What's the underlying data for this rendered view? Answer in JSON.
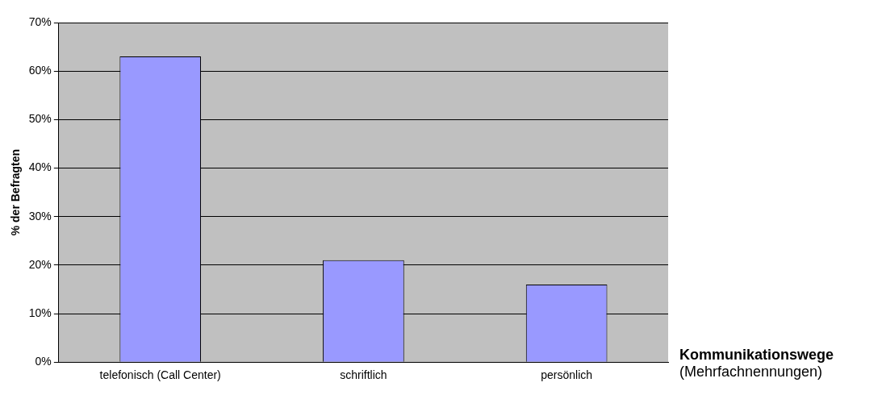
{
  "chart_data": {
    "type": "bar",
    "ylabel": "% der Befragten",
    "xlabel": "Kommunikationswege",
    "annotations": [
      "(Mehrfachnennungen)"
    ],
    "categories": [
      "telefonisch (Call Center)",
      "schriftlich",
      "persönlich"
    ],
    "values": [
      63,
      21,
      16
    ],
    "color": "#9999ff",
    "ylim": [
      0,
      70
    ],
    "yticks": [
      {
        "value": 0,
        "label": "0%"
      },
      {
        "value": 10,
        "label": "10%"
      },
      {
        "value": 20,
        "label": "20%"
      },
      {
        "value": 30,
        "label": "30%"
      },
      {
        "value": 40,
        "label": "40%"
      },
      {
        "value": 50,
        "label": "50%"
      },
      {
        "value": 60,
        "label": "60%"
      },
      {
        "value": 70,
        "label": "70%"
      }
    ],
    "grid": "y",
    "legend": false
  }
}
